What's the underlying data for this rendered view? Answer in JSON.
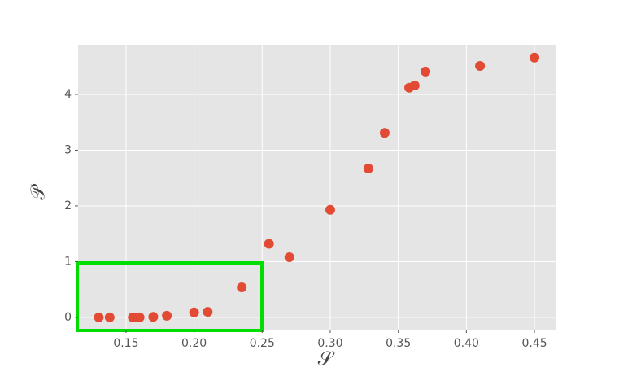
{
  "chart_data": {
    "type": "scatter",
    "xlabel": "𝒮",
    "ylabel": "𝒫",
    "x": [
      0.13,
      0.138,
      0.155,
      0.158,
      0.16,
      0.17,
      0.18,
      0.2,
      0.21,
      0.235,
      0.255,
      0.27,
      0.3,
      0.328,
      0.34,
      0.358,
      0.362,
      0.37,
      0.41,
      0.45
    ],
    "series": [
      {
        "color": "#e24a33",
        "values": [
          0,
          0,
          0,
          0,
          0,
          0.01,
          0.03,
          0.09,
          0.1,
          0.54,
          1.32,
          1.08,
          1.93,
          2.67,
          3.31,
          4.12,
          4.16,
          4.41,
          4.51,
          4.66
        ]
      }
    ],
    "xlim": [
      0.1148,
      0.4661
    ],
    "ylim": [
      -0.22,
      4.89
    ],
    "xticks": [
      0.15,
      {
        "value": 0.2,
        "label": "0.20"
      },
      0.25,
      {
        "value": 0.3,
        "label": "0.30"
      },
      0.35,
      {
        "value": 0.4,
        "label": "0.40"
      },
      0.45
    ],
    "yticks": [
      0,
      1,
      2,
      3,
      4
    ],
    "grid": true
  }
}
